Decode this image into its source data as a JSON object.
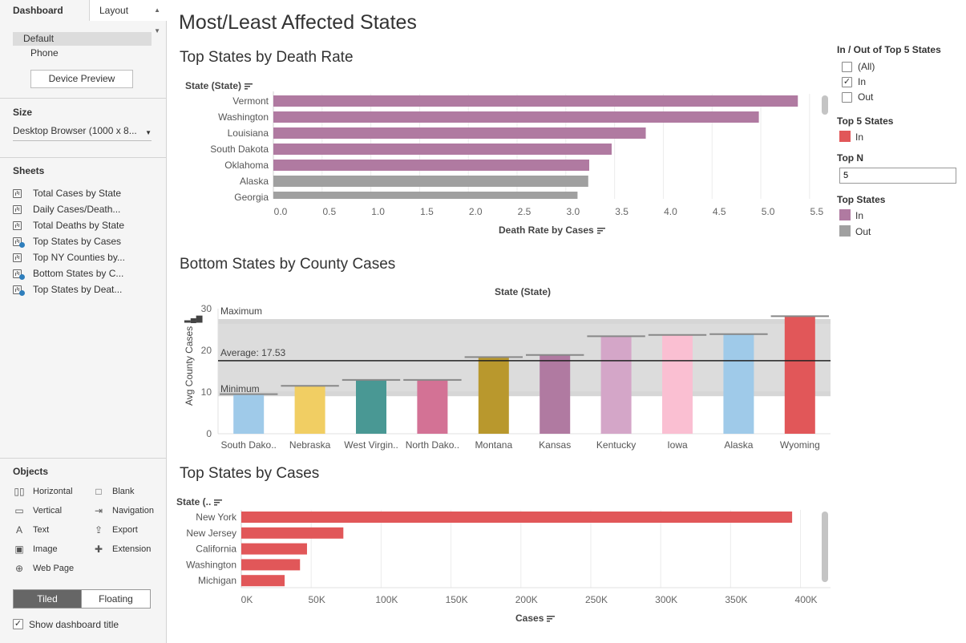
{
  "left_panel": {
    "tabs": {
      "dashboard": "Dashboard",
      "layout": "Layout"
    },
    "device": {
      "options": [
        "Default",
        "Phone"
      ],
      "selected": "Default",
      "preview_button": "Device Preview"
    },
    "size": {
      "title": "Size",
      "value": "Desktop Browser (1000 x 8..."
    },
    "sheets": {
      "title": "Sheets",
      "items": [
        {
          "label": "Total Cases by State",
          "used": false
        },
        {
          "label": "Daily Cases/Death...",
          "used": false
        },
        {
          "label": "Total Deaths by State",
          "used": false
        },
        {
          "label": "Top States by Cases",
          "used": true
        },
        {
          "label": "Top NY Counties by...",
          "used": false
        },
        {
          "label": "Bottom States by C...",
          "used": true
        },
        {
          "label": "Top States by Deat...",
          "used": true
        }
      ]
    },
    "objects": {
      "title": "Objects",
      "items": [
        {
          "label": "Horizontal",
          "icon": "horizontal-icon",
          "glyph": "▯▯"
        },
        {
          "label": "Blank",
          "icon": "blank-icon",
          "glyph": "□"
        },
        {
          "label": "Vertical",
          "icon": "vertical-icon",
          "glyph": "▭"
        },
        {
          "label": "Navigation",
          "icon": "navigation-icon",
          "glyph": "⇥"
        },
        {
          "label": "Text",
          "icon": "text-icon",
          "glyph": "A"
        },
        {
          "label": "Export",
          "icon": "export-icon",
          "glyph": "⇪"
        },
        {
          "label": "Image",
          "icon": "image-icon",
          "glyph": "▣"
        },
        {
          "label": "Extension",
          "icon": "extension-icon",
          "glyph": "✚"
        },
        {
          "label": "Web Page",
          "icon": "globe-icon",
          "glyph": "⊕"
        }
      ]
    },
    "layout_mode": {
      "tiled": "Tiled",
      "floating": "Floating",
      "selected": "Tiled"
    },
    "show_title": {
      "label": "Show dashboard title",
      "checked": true
    }
  },
  "dashboard": {
    "title": "Most/Least Affected States",
    "death_rate": {
      "title": "Top States by Death Rate",
      "row_header": "State (State)",
      "xlabel": "Death Rate by Cases"
    },
    "county": {
      "title": "Bottom States by County Cases",
      "column_header": "State (State)",
      "ylabel": "Avg County Cases",
      "band_labels": {
        "maximum": "Maximum",
        "minimum": "Minimum",
        "average": "Average: 17.53"
      }
    },
    "cases": {
      "title": "Top States by Cases",
      "row_header": "State (..",
      "xlabel": "Cases"
    }
  },
  "legends": {
    "filter": {
      "title": "In / Out of Top 5 States",
      "options": [
        {
          "label": "(All)",
          "checked": false
        },
        {
          "label": "In",
          "checked": true
        },
        {
          "label": "Out",
          "checked": false
        }
      ]
    },
    "top5": {
      "title": "Top 5 States",
      "items": [
        {
          "label": "In",
          "color": "#e15759"
        }
      ]
    },
    "topn": {
      "title": "Top N",
      "value": "5"
    },
    "top_states": {
      "title": "Top States",
      "items": [
        {
          "label": "In",
          "color": "#b07aa1"
        },
        {
          "label": "Out",
          "color": "#a0a0a0"
        }
      ]
    }
  },
  "chart_data": [
    {
      "type": "bar",
      "orientation": "horizontal",
      "title": "Top States by Death Rate",
      "xlabel": "Death Rate by Cases",
      "ylabel": "State (State)",
      "categories": [
        "Vermont",
        "Washington",
        "Louisiana",
        "South Dakota",
        "Oklahoma",
        "Alaska",
        "Georgia"
      ],
      "values": [
        5.38,
        4.98,
        3.82,
        3.47,
        3.24,
        3.23,
        3.12
      ],
      "in_top": [
        true,
        true,
        true,
        true,
        true,
        false,
        false
      ],
      "colors": {
        "in": "#b07aa1",
        "out": "#a0a0a0"
      },
      "xlim": [
        0,
        5.6
      ],
      "xticks": [
        "0.0",
        "0.5",
        "1.0",
        "1.5",
        "2.0",
        "2.5",
        "3.0",
        "3.5",
        "4.0",
        "4.5",
        "5.0",
        "5.5"
      ]
    },
    {
      "type": "bar",
      "title": "Bottom States by County Cases",
      "xlabel": "State (State)",
      "ylabel": "Avg County Cases",
      "categories": [
        "South Dako..",
        "Nebraska",
        "West Virgin..",
        "North Dako..",
        "Montana",
        "Kansas",
        "Kentucky",
        "Iowa",
        "Alaska",
        "Wyoming"
      ],
      "values": [
        9.5,
        11.5,
        12.9,
        12.9,
        18.4,
        18.9,
        23.4,
        23.7,
        23.9,
        28.2
      ],
      "colors": [
        "#9fcae9",
        "#f1ce63",
        "#499894",
        "#d37295",
        "#b9982d",
        "#b07aa1",
        "#d4a6c8",
        "#fabfd2",
        "#9fcae9",
        "#e15759"
      ],
      "ylim": [
        0,
        30
      ],
      "yticks": [
        0,
        10,
        20,
        30
      ],
      "reference": {
        "average": 17.53,
        "minimum": 9.0,
        "maximum": 27.5
      }
    },
    {
      "type": "bar",
      "orientation": "horizontal",
      "title": "Top States by Cases",
      "xlabel": "Cases",
      "ylabel": "State (..",
      "categories": [
        "New York",
        "New Jersey",
        "California",
        "Washington",
        "Michigan"
      ],
      "values": [
        394000,
        73000,
        47000,
        42000,
        31000
      ],
      "color": "#e15759",
      "xlim": [
        0,
        410000
      ],
      "xticks": [
        "0K",
        "50K",
        "100K",
        "150K",
        "200K",
        "250K",
        "300K",
        "350K",
        "400K"
      ]
    }
  ]
}
